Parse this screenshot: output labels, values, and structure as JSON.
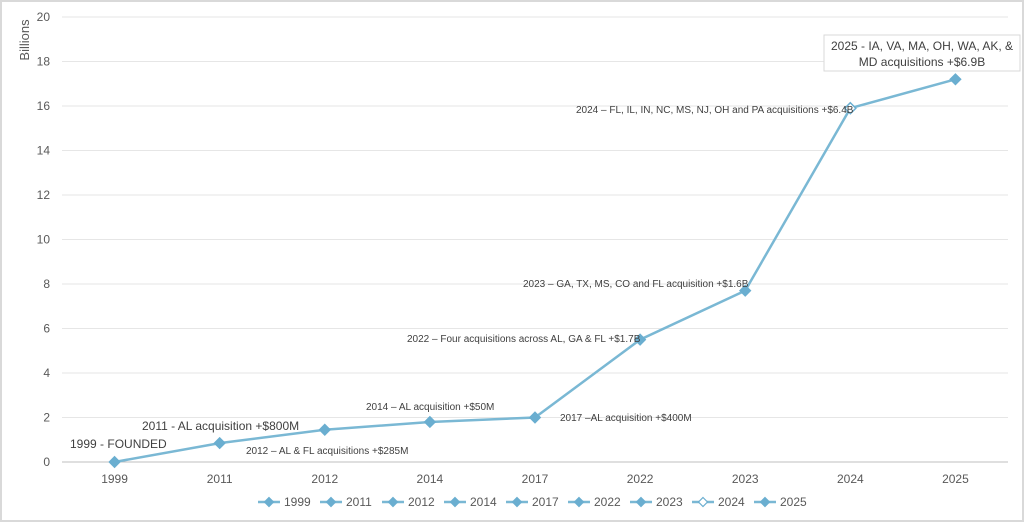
{
  "chart_data": {
    "type": "line",
    "ylabel": "Billions",
    "ylim": [
      0,
      20
    ],
    "yticks": [
      "0",
      "2",
      "4",
      "6",
      "8",
      "10",
      "12",
      "14",
      "16",
      "18",
      "20"
    ],
    "categories": [
      "1999",
      "2011",
      "2012",
      "2014",
      "2017",
      "2022",
      "2023",
      "2024",
      "2025"
    ],
    "values": [
      0,
      0.85,
      1.45,
      1.8,
      2.0,
      5.5,
      7.7,
      15.9,
      17.2
    ],
    "annotations": [
      "1999 - FOUNDED",
      "2011 - AL acquisition +$800M",
      "2012 – AL & FL acquisitions +$285M",
      "2014 – AL acquisition +$50M",
      "2017 –AL acquisition +$400M",
      "2022 – Four acquisitions across AL, GA & FL +$1.7B",
      "2023 – GA, TX, MS, CO and FL acquisition +$1.6B",
      "2024 – FL, IL, IN, NC, MS, NJ, OH and PA acquisitions +$6.4B",
      "2025 - IA, VA, MA, OH, WA, AK, &",
      "MD acquisitions +$6.9B"
    ],
    "legend": [
      "1999",
      "2011",
      "2012",
      "2014",
      "2017",
      "2022",
      "2023",
      "2024",
      "2025"
    ],
    "legend_position": "bottom",
    "grid": true,
    "colors": {
      "line": "#7ab8d4",
      "marker": "#6aaed0",
      "grid": "#e6e6e6",
      "axis": "#bfbfbf"
    }
  }
}
